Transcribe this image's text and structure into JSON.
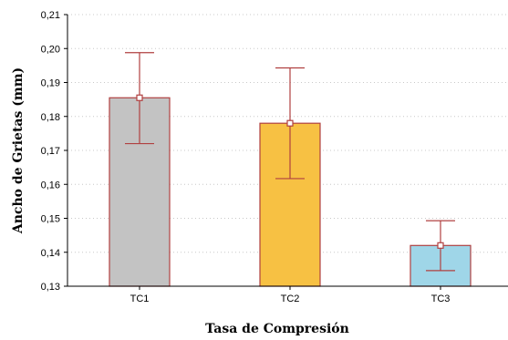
{
  "chart_data": {
    "type": "bar",
    "title": "",
    "xlabel": "Tasa de Compresión",
    "ylabel": "Ancho de Grietas (mm)",
    "ylim": [
      0.13,
      0.21
    ],
    "yticks": [
      "0,13",
      "0,14",
      "0,15",
      "0,16",
      "0,17",
      "0,18",
      "0,19",
      "0,20",
      "0,21"
    ],
    "grid": "horizontal dotted",
    "categories": [
      "TC1",
      "TC2",
      "TC3"
    ],
    "values": [
      0.1855,
      0.178,
      0.142
    ],
    "error_low": [
      0.172,
      0.1617,
      0.1346
    ],
    "error_high": [
      0.1988,
      0.1943,
      0.1493
    ],
    "bar_colors": [
      "#c3c3c3",
      "#f7c143",
      "#9fd6e8"
    ],
    "bar_edge_color": "#b04040",
    "error_color": "#b04040"
  }
}
